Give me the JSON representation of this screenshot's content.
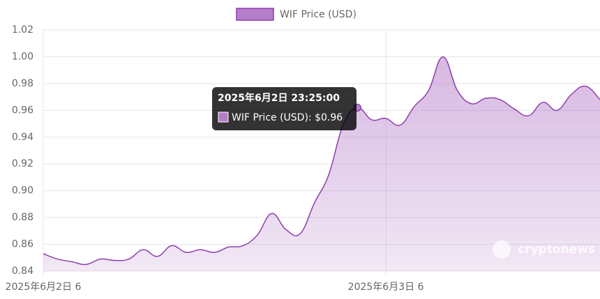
{
  "chart_data": {
    "type": "area",
    "categories": [
      "2025年6月2日 6",
      null,
      null,
      null,
      null,
      null,
      null,
      null,
      null,
      null,
      null,
      null,
      null,
      null,
      null,
      null,
      null,
      null,
      null,
      null,
      null,
      null,
      null,
      null,
      "2025年6月3日 6",
      null,
      null,
      null,
      null,
      null,
      null,
      null,
      null,
      null,
      null,
      null,
      null,
      null,
      null,
      null
    ],
    "series": [
      {
        "name": "WIF Price (USD)",
        "color": "#8e3fae",
        "fill": "#b57ec9",
        "values": [
          0.853,
          0.849,
          0.847,
          0.845,
          0.849,
          0.848,
          0.849,
          0.856,
          0.851,
          0.859,
          0.854,
          0.856,
          0.854,
          0.858,
          0.859,
          0.867,
          0.883,
          0.871,
          0.868,
          0.891,
          0.912,
          0.949,
          0.962,
          0.953,
          0.954,
          0.949,
          0.963,
          0.975,
          1.0,
          0.975,
          0.965,
          0.969,
          0.968,
          0.961,
          0.956,
          0.966,
          0.96,
          0.972,
          0.978,
          0.968
        ]
      }
    ],
    "ylim": [
      0.84,
      1.02
    ],
    "yticks": [
      0.84,
      0.86,
      0.88,
      {
        "value": 0.9,
        "label": "0.90"
      },
      0.92,
      0.94,
      0.96,
      0.98,
      {
        "value": 1.0,
        "label": "1.00"
      },
      1.02
    ],
    "grid": true,
    "legend": "top",
    "tooltip": {
      "index": 22,
      "title": "2025年6月2日 23:25:00",
      "label": "WIF Price (USD): $0.96"
    },
    "watermark": "cryptonews"
  }
}
